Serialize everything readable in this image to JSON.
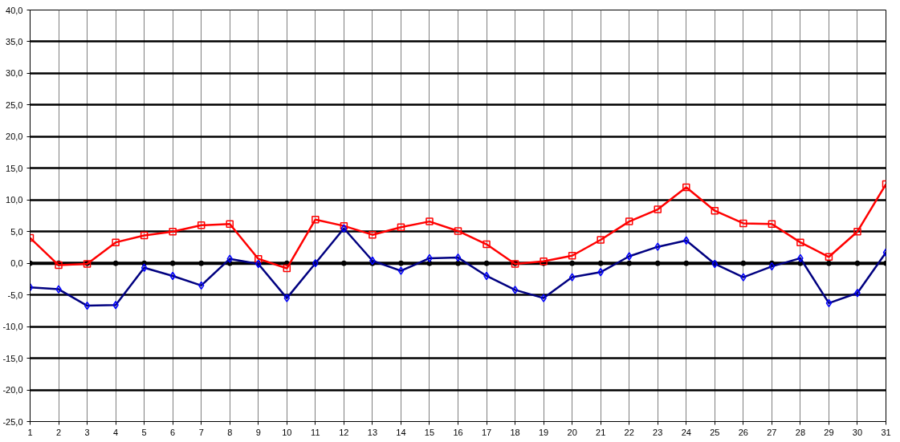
{
  "chart_data": {
    "type": "line",
    "x": [
      1,
      2,
      3,
      4,
      5,
      6,
      7,
      8,
      9,
      10,
      11,
      12,
      13,
      14,
      15,
      16,
      17,
      18,
      19,
      20,
      21,
      22,
      23,
      24,
      25,
      26,
      27,
      28,
      29,
      30,
      31
    ],
    "series": [
      {
        "color": "#000000",
        "marker": "circle",
        "values": [
          0,
          0,
          0,
          0,
          0,
          0,
          0,
          0,
          0,
          0,
          0,
          0,
          0,
          0,
          0,
          0,
          0,
          0,
          0,
          0,
          0,
          0,
          0,
          0,
          0,
          0,
          0,
          0,
          0,
          0,
          0
        ]
      },
      {
        "color": "#ff0000",
        "marker": "square",
        "values": [
          4.0,
          -0.3,
          -0.1,
          3.3,
          4.4,
          5.0,
          6.0,
          6.2,
          0.7,
          -0.8,
          6.9,
          5.9,
          4.5,
          5.7,
          6.6,
          5.1,
          3.0,
          -0.1,
          0.3,
          1.2,
          3.7,
          6.6,
          8.5,
          12.0,
          8.3,
          6.3,
          6.2,
          3.3,
          1.0,
          5.0,
          12.5
        ]
      },
      {
        "color": "#000080",
        "marker": "diamond",
        "values": [
          -3.8,
          -4.1,
          -6.7,
          -6.6,
          -0.7,
          -2.0,
          -3.5,
          0.7,
          -0.1,
          -5.5,
          0.0,
          5.5,
          0.4,
          -1.2,
          0.8,
          0.9,
          -2.0,
          -4.2,
          -5.5,
          -2.2,
          -1.4,
          1.1,
          2.6,
          3.6,
          -0.1,
          -2.2,
          -0.5,
          0.8,
          -6.3,
          -4.7,
          1.7
        ]
      }
    ],
    "xlim": [
      1,
      31
    ],
    "xticks": [
      1,
      2,
      3,
      4,
      5,
      6,
      7,
      8,
      9,
      10,
      11,
      12,
      13,
      14,
      15,
      16,
      17,
      18,
      19,
      20,
      21,
      22,
      23,
      24,
      25,
      26,
      27,
      28,
      29,
      30,
      31
    ],
    "ylim": [
      -25,
      40
    ],
    "yticks": [
      {
        "value": -25,
        "label": "-25,0"
      },
      {
        "value": -20,
        "label": "-20,0"
      },
      {
        "value": -15,
        "label": "-15,0"
      },
      {
        "value": -10,
        "label": "-10,0"
      },
      {
        "value": -5,
        "label": "-5,0"
      },
      {
        "value": 0,
        "label": "0,0"
      },
      {
        "value": 5,
        "label": "5,0"
      },
      {
        "value": 10,
        "label": "10,0"
      },
      {
        "value": 15,
        "label": "15,0"
      },
      {
        "value": 20,
        "label": "20,0"
      },
      {
        "value": 25,
        "label": "25,0"
      },
      {
        "value": 30,
        "label": "30,0"
      },
      {
        "value": 35,
        "label": "35,0"
      },
      {
        "value": 40,
        "label": "40,0"
      }
    ],
    "grid": true,
    "line_style": "solid"
  }
}
